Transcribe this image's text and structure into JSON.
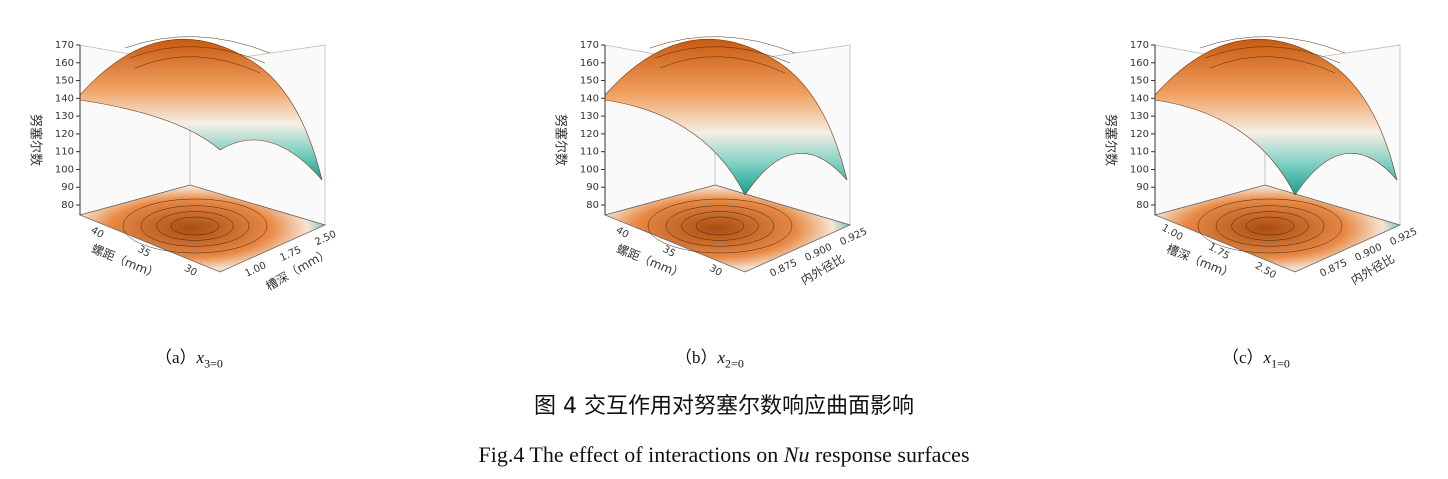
{
  "figure": {
    "panels": [
      {
        "z_label": "努塞尔数",
        "z_ticks": [
          "170",
          "160",
          "150",
          "140",
          "130",
          "120",
          "110",
          "100",
          "90",
          "80"
        ],
        "left_label": "螺距（mm）",
        "left_ticks": [
          "40",
          "35",
          "30"
        ],
        "right_label": "槽深（mm）",
        "right_ticks": [
          "2.50",
          "1.75",
          "1.00"
        ],
        "caption": {
          "label": "（a）",
          "var": "x",
          "sub": "3=0"
        }
      },
      {
        "z_label": "努塞尔数",
        "z_ticks": [
          "170",
          "160",
          "150",
          "140",
          "130",
          "120",
          "110",
          "100",
          "90",
          "80"
        ],
        "left_label": "螺距（mm）",
        "left_ticks": [
          "40",
          "35",
          "30"
        ],
        "right_label": "内外径比",
        "right_ticks": [
          "0.925",
          "0.900",
          "0.875"
        ],
        "caption": {
          "label": "（b）",
          "var": "x",
          "sub": "2=0"
        }
      },
      {
        "z_label": "努塞尔数",
        "z_ticks": [
          "170",
          "160",
          "150",
          "140",
          "130",
          "120",
          "110",
          "100",
          "90",
          "80"
        ],
        "left_label": "槽深（mm）",
        "left_ticks": [
          "1.00",
          "1.75",
          "2.50"
        ],
        "right_label": "内外径比",
        "right_ticks": [
          "0.925",
          "0.900",
          "0.875"
        ],
        "caption": {
          "label": "（c）",
          "var": "x",
          "sub": "1=0"
        }
      }
    ],
    "title_cn": "图 4  交互作用对努塞尔数响应曲面影响",
    "title_en": {
      "before": "Fig.4 The effect of interactions on ",
      "italic": "Nu",
      "after": " response surfaces"
    }
  }
}
